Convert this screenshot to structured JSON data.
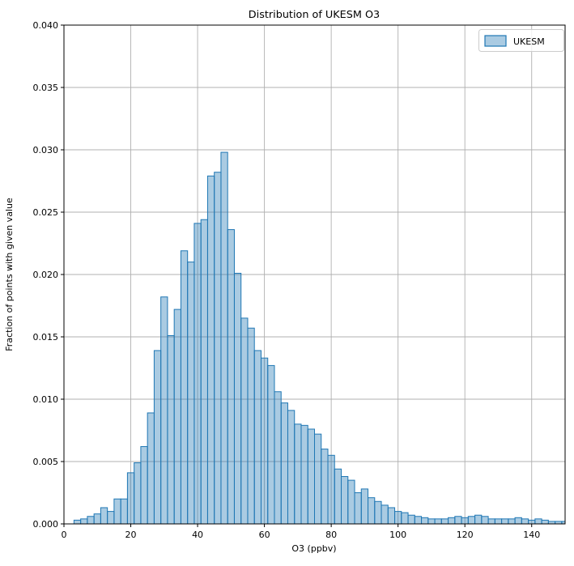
{
  "figure": {
    "title": "Distribution of UKESM O3",
    "xlabel": "O3 (ppbv)",
    "ylabel": "Fraction of points with given value",
    "legend": {
      "label": "UKESM"
    }
  },
  "chart_data": {
    "type": "bar",
    "subtype": "histogram",
    "title": "Distribution of UKESM O3",
    "xlabel": "O3 (ppbv)",
    "ylabel": "Fraction of points with given value",
    "legend": [
      "UKESM"
    ],
    "legend_position": "upper right",
    "grid": true,
    "xlim": [
      0,
      150
    ],
    "ylim": [
      0,
      0.04
    ],
    "xticks": [
      0,
      20,
      40,
      60,
      80,
      100,
      120,
      140
    ],
    "yticks": [
      0.0,
      0.005,
      0.01,
      0.015,
      0.02,
      0.025,
      0.03,
      0.035,
      0.04
    ],
    "ytick_labels": [
      "0.000",
      "0.005",
      "0.010",
      "0.015",
      "0.020",
      "0.025",
      "0.030",
      "0.035",
      "0.040"
    ],
    "bin_start": 3,
    "bin_width": 2,
    "values": [
      0.0003,
      0.0004,
      0.0006,
      0.0008,
      0.0013,
      0.001,
      0.002,
      0.002,
      0.0041,
      0.0049,
      0.0062,
      0.0089,
      0.0139,
      0.0182,
      0.0151,
      0.0172,
      0.0219,
      0.021,
      0.0241,
      0.0244,
      0.0279,
      0.0282,
      0.0298,
      0.0236,
      0.0201,
      0.0165,
      0.0157,
      0.0139,
      0.0133,
      0.0127,
      0.0106,
      0.0097,
      0.0091,
      0.008,
      0.0079,
      0.0076,
      0.0072,
      0.006,
      0.0055,
      0.0044,
      0.0038,
      0.0035,
      0.0025,
      0.0028,
      0.0021,
      0.0018,
      0.0015,
      0.0013,
      0.001,
      0.0009,
      0.0007,
      0.0006,
      0.0005,
      0.0004,
      0.0004,
      0.0004,
      0.0005,
      0.0006,
      0.0005,
      0.0006,
      0.0007,
      0.0006,
      0.0004,
      0.0004,
      0.0004,
      0.0004,
      0.0005,
      0.0004,
      0.0003,
      0.0004,
      0.0003,
      0.0002,
      0.0002,
      0.0002
    ],
    "colors": {
      "bar_fill": "rgba(31,119,180,0.38)",
      "bar_edge": "#1f77b4",
      "grid": "#b0b0b0",
      "spine": "#000000",
      "background": "#ffffff",
      "legend_edge": "#cccccc"
    }
  }
}
